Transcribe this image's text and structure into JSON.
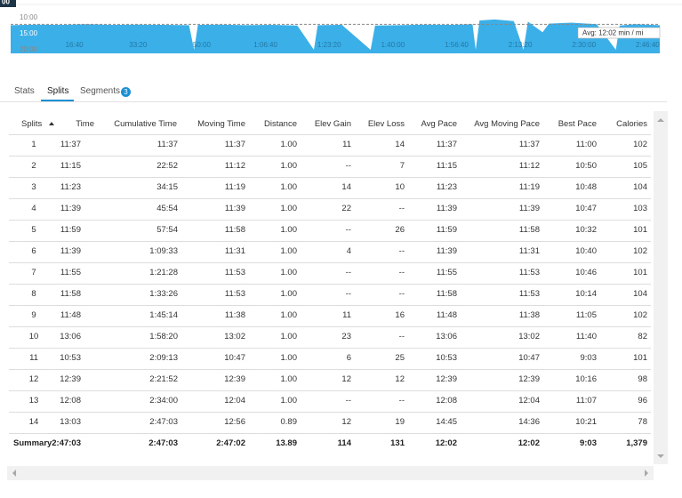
{
  "pace_chart": {
    "cursor_label": "00",
    "ylim": [
      4.4,
      21.1
    ],
    "yticks": [
      {
        "value": 10,
        "label": "10:00"
      },
      {
        "value": 15,
        "label": "15:00"
      },
      {
        "value": 20,
        "label": "20:00"
      }
    ],
    "xlim": [
      0,
      10190
    ],
    "xticks": [
      {
        "value": 1000,
        "label": "16:40"
      },
      {
        "value": 2000,
        "label": "33:20"
      },
      {
        "value": 3000,
        "label": "50:00"
      },
      {
        "value": 4000,
        "label": "1:06:40"
      },
      {
        "value": 5000,
        "label": "1:23:20"
      },
      {
        "value": 6000,
        "label": "1:40:00"
      },
      {
        "value": 7000,
        "label": "1:56:40"
      },
      {
        "value": 8000,
        "label": "2:13:20"
      },
      {
        "value": 9000,
        "label": "2:30:00"
      },
      {
        "value": 10000,
        "label": "2:46:40"
      }
    ],
    "series": {
      "color": "#3aafe8",
      "x": [
        0,
        400,
        800,
        1200,
        1600,
        2000,
        2400,
        2800,
        2880,
        2940,
        3300,
        3700,
        4100,
        4500,
        4760,
        4820,
        5200,
        5650,
        5720,
        6100,
        6500,
        6900,
        7250,
        7300,
        7360,
        7600,
        7900,
        8050,
        8120,
        8350,
        8450,
        8800,
        9200,
        9500,
        9560,
        9800,
        10190
      ],
      "values": [
        12.3,
        12.1,
        12.2,
        12.0,
        12.2,
        12.1,
        12.2,
        12.3,
        20,
        12.2,
        12.1,
        12.3,
        12.2,
        12.4,
        20,
        12.3,
        12.2,
        20,
        12.4,
        12.3,
        12.1,
        12.2,
        12.0,
        20,
        10.8,
        10.5,
        11.0,
        20,
        11.2,
        14.5,
        11.8,
        11.5,
        12.0,
        20,
        12.4,
        12.0,
        12.3
      ]
    },
    "avg": {
      "value": 12.0333,
      "label": "Avg: 12:02 min / mi"
    }
  },
  "tabs": {
    "stats": "Stats",
    "splits": "Splits",
    "segments": "Segments",
    "segments_count": "3"
  },
  "table": {
    "headers": [
      "Splits",
      "Time",
      "Cumulative Time",
      "Moving Time",
      "Distance",
      "Elev Gain",
      "Elev Loss",
      "Avg Pace",
      "Avg Moving Pace",
      "Best Pace",
      "Calories"
    ],
    "rows": [
      [
        "1",
        "11:37",
        "11:37",
        "11:37",
        "1.00",
        "11",
        "14",
        "11:37",
        "11:37",
        "11:00",
        "102"
      ],
      [
        "2",
        "11:15",
        "22:52",
        "11:12",
        "1.00",
        "--",
        "7",
        "11:15",
        "11:12",
        "10:50",
        "105"
      ],
      [
        "3",
        "11:23",
        "34:15",
        "11:19",
        "1.00",
        "14",
        "10",
        "11:23",
        "11:19",
        "10:48",
        "104"
      ],
      [
        "4",
        "11:39",
        "45:54",
        "11:39",
        "1.00",
        "22",
        "--",
        "11:39",
        "11:39",
        "10:47",
        "103"
      ],
      [
        "5",
        "11:59",
        "57:54",
        "11:58",
        "1.00",
        "--",
        "26",
        "11:59",
        "11:58",
        "10:32",
        "101"
      ],
      [
        "6",
        "11:39",
        "1:09:33",
        "11:31",
        "1.00",
        "4",
        "--",
        "11:39",
        "11:31",
        "10:40",
        "102"
      ],
      [
        "7",
        "11:55",
        "1:21:28",
        "11:53",
        "1.00",
        "--",
        "--",
        "11:55",
        "11:53",
        "10:46",
        "101"
      ],
      [
        "8",
        "11:58",
        "1:33:26",
        "11:53",
        "1.00",
        "--",
        "--",
        "11:58",
        "11:53",
        "10:14",
        "104"
      ],
      [
        "9",
        "11:48",
        "1:45:14",
        "11:38",
        "1.00",
        "11",
        "16",
        "11:48",
        "11:38",
        "11:05",
        "102"
      ],
      [
        "10",
        "13:06",
        "1:58:20",
        "13:02",
        "1.00",
        "23",
        "--",
        "13:06",
        "13:02",
        "11:40",
        "82"
      ],
      [
        "11",
        "10:53",
        "2:09:13",
        "10:47",
        "1.00",
        "6",
        "25",
        "10:53",
        "10:47",
        "9:03",
        "101"
      ],
      [
        "12",
        "12:39",
        "2:21:52",
        "12:39",
        "1.00",
        "12",
        "12",
        "12:39",
        "12:39",
        "10:16",
        "98"
      ],
      [
        "13",
        "12:08",
        "2:34:00",
        "12:04",
        "1.00",
        "--",
        "--",
        "12:08",
        "12:04",
        "11:07",
        "96"
      ],
      [
        "14",
        "13:03",
        "2:47:03",
        "12:56",
        "0.89",
        "12",
        "19",
        "14:45",
        "14:36",
        "10:21",
        "78"
      ]
    ],
    "summary": [
      "Summary",
      "2:47:03",
      "2:47:03",
      "2:47:02",
      "13.89",
      "114",
      "131",
      "12:02",
      "12:02",
      "9:03",
      "1,379"
    ]
  }
}
